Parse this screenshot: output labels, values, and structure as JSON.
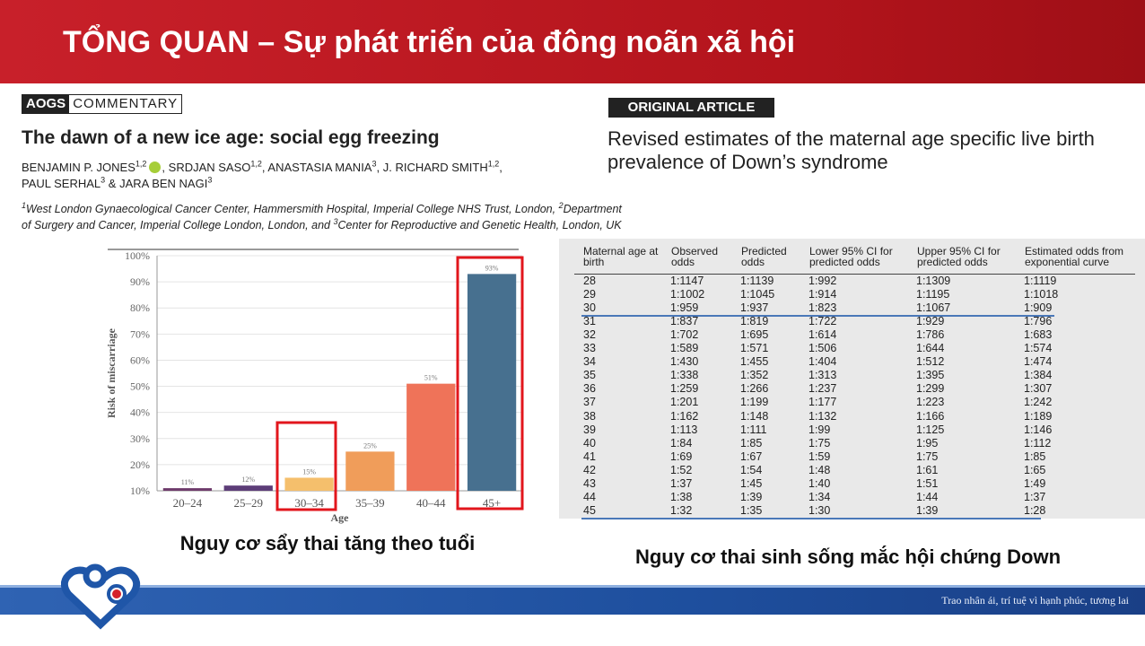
{
  "header": {
    "title": "TỔNG QUAN – Sự phát triển của đông noãn xã hội"
  },
  "left_paper": {
    "journal": "AOGS",
    "section": "COMMENTARY",
    "title": "The dawn of a new ice age: social egg freezing",
    "authors": [
      [
        {
          "text": "BENJAMIN P. JONES",
          "sup": "1,2"
        },
        {
          "text": ", SRDJAN SASO",
          "sup": "1,2"
        },
        {
          "text": ", ANASTASIA MANIA",
          "sup": "3"
        },
        {
          "text": ", J. RICHARD SMITH",
          "sup": "1,2"
        },
        {
          "text": ","
        }
      ],
      [
        {
          "text": "PAUL SERHAL",
          "sup": "3"
        },
        {
          "text": " & JARA BEN NAGI",
          "sup": "3"
        }
      ]
    ],
    "affiliations": [
      [
        {
          "sup": "1",
          "text": "West London Gynaecological Cancer Center, Hammersmith Hospital, Imperial College NHS Trust, London, "
        },
        {
          "sup": "2",
          "text": "Department"
        }
      ],
      [
        {
          "text": "of Surgery and Cancer, Imperial College London, London, and "
        },
        {
          "sup": "3",
          "text": "Center for Reproductive and Genetic Health, London, UK"
        }
      ]
    ]
  },
  "right_paper": {
    "section": "ORIGINAL ARTICLE",
    "title_lines": [
      "Revised estimates of the maternal age specific live birth",
      "prevalence of Down’s syndrome"
    ]
  },
  "chart_data": {
    "type": "bar",
    "x_label": "Age",
    "y_label": "Risk of miscarriage",
    "categories": [
      "20–24",
      "25–29",
      "30–34",
      "35–39",
      "40–44",
      "45+"
    ],
    "values": [
      11,
      12,
      15,
      25,
      51,
      93
    ],
    "value_labels": [
      "11%",
      "12%",
      "15%",
      "25%",
      "51%",
      "93%"
    ],
    "colors": [
      "#6e3b6b",
      "#5d3d78",
      "#f5bf6c",
      "#f09d5a",
      "#ef7359",
      "#47708f"
    ],
    "ylim": [
      10,
      100
    ],
    "yticks": [
      {
        "value": 10,
        "label": "10%"
      },
      {
        "value": 20,
        "label": "20%"
      },
      {
        "value": 30,
        "label": "30%"
      },
      {
        "value": 40,
        "label": "40%"
      },
      {
        "value": 50,
        "label": "50%"
      },
      {
        "value": 60,
        "label": "60%"
      },
      {
        "value": 70,
        "label": "70%"
      },
      {
        "value": 80,
        "label": "80%"
      },
      {
        "value": 90,
        "label": "90%"
      },
      {
        "value": 100,
        "label": "100%"
      }
    ],
    "grid": true
  },
  "table": {
    "header": [
      "Maternal age at birth",
      "Observed odds",
      "Predicted odds",
      "Lower 95% CI for predicted odds",
      "Upper 95% CI for predicted odds",
      "Estimated odds from exponential curve"
    ],
    "rows": [
      [
        "28",
        "1:1147",
        "1:1139",
        "1:992",
        "1:1309",
        "1:1119"
      ],
      [
        "29",
        "1:1002",
        "1:1045",
        "1:914",
        "1:1195",
        "1:1018"
      ],
      [
        "30",
        "1:959",
        "1:937",
        "1:823",
        "1:1067",
        "1:909"
      ],
      [
        "31",
        "1:837",
        "1:819",
        "1:722",
        "1:929",
        "1:796"
      ],
      [
        "32",
        "1:702",
        "1:695",
        "1:614",
        "1:786",
        "1:683"
      ],
      [
        "33",
        "1:589",
        "1:571",
        "1:506",
        "1:644",
        "1:574"
      ],
      [
        "34",
        "1:430",
        "1:455",
        "1:404",
        "1:512",
        "1:474"
      ],
      [
        "35",
        "1:338",
        "1:352",
        "1:313",
        "1:395",
        "1:384"
      ],
      [
        "36",
        "1:259",
        "1:266",
        "1:237",
        "1:299",
        "1:307"
      ],
      [
        "37",
        "1:201",
        "1:199",
        "1:177",
        "1:223",
        "1:242"
      ],
      [
        "38",
        "1:162",
        "1:148",
        "1:132",
        "1:166",
        "1:189"
      ],
      [
        "39",
        "1:113",
        "1:111",
        "1:99",
        "1:125",
        "1:146"
      ],
      [
        "40",
        "1:84",
        "1:85",
        "1:75",
        "1:95",
        "1:112"
      ],
      [
        "41",
        "1:69",
        "1:67",
        "1:59",
        "1:75",
        "1:85"
      ],
      [
        "42",
        "1:52",
        "1:54",
        "1:48",
        "1:61",
        "1:65"
      ],
      [
        "43",
        "1:37",
        "1:45",
        "1:40",
        "1:51",
        "1:49"
      ],
      [
        "44",
        "1:38",
        "1:39",
        "1:34",
        "1:44",
        "1:37"
      ],
      [
        "45",
        "1:32",
        "1:35",
        "1:30",
        "1:39",
        "1:28"
      ]
    ]
  },
  "captions": [
    "Nguy cơ sẩy thai tăng theo tuổi",
    "Nguy cơ thai sinh sống mắc hội chứng Down"
  ],
  "footer": {
    "slogan": "Trao nhân ái, trí tuệ vì hạnh phúc, tương lai"
  }
}
